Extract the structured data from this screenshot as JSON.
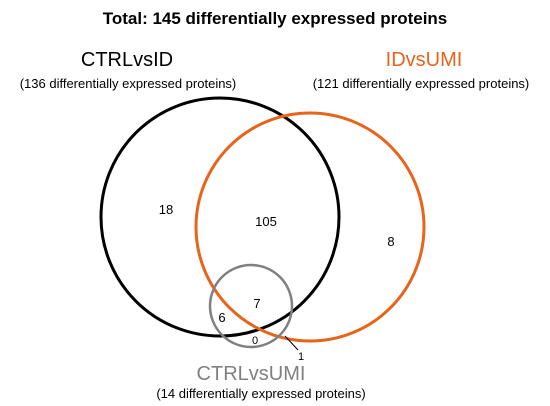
{
  "title": "Total: 145 differentially expressed proteins",
  "colors": {
    "ctrl_vs_id": "#000000",
    "id_vs_umi": "#e8641b",
    "ctrl_vs_umi": "#808080"
  },
  "sets": {
    "ctrl_vs_id": {
      "name": "CTRLvsID",
      "subtitle": "(136 differentially expressed proteins)"
    },
    "id_vs_umi": {
      "name": "IDvsUMI",
      "subtitle": "(121 differentially expressed proteins)"
    },
    "ctrl_vs_umi": {
      "name": "CTRLvsUMI",
      "subtitle": "(14 differentially expressed proteins)"
    }
  },
  "regions": {
    "ctrl_only": "18",
    "ctrl_id": "105",
    "id_only": "8",
    "all_three": "7",
    "ctrl_umi": "6",
    "umi_only": "0",
    "id_umi": "1"
  }
}
